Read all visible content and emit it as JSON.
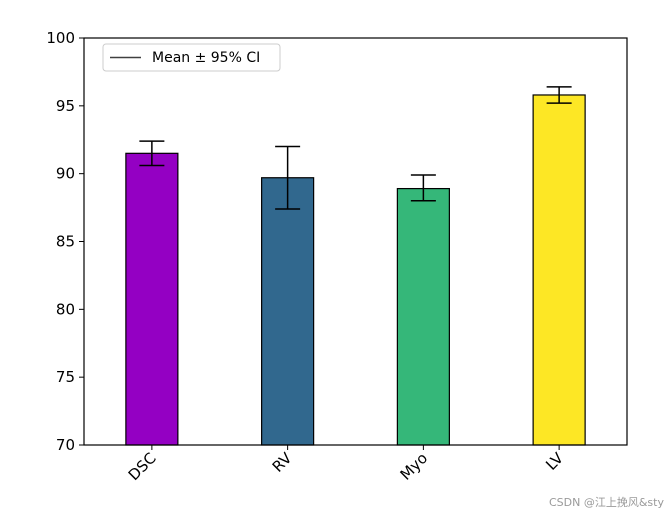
{
  "chart_data": {
    "type": "bar",
    "categories": [
      "DSC",
      "RV",
      "Myo",
      "LV"
    ],
    "values": [
      91.5,
      89.7,
      88.9,
      95.8
    ],
    "error_low": [
      90.6,
      87.4,
      88.0,
      95.2
    ],
    "error_high": [
      92.4,
      92.0,
      89.9,
      96.4
    ],
    "colors": [
      "#9400c3",
      "#31688e",
      "#35b779",
      "#fde725"
    ],
    "ylim": [
      70,
      100
    ],
    "yticks": [
      70,
      75,
      80,
      85,
      90,
      95,
      100
    ],
    "legend": {
      "label": "Mean ± 95% CI",
      "placement": "top-left"
    },
    "title": "",
    "xlabel": "",
    "ylabel": ""
  },
  "watermark": "CSDN @江上挽风&sty"
}
